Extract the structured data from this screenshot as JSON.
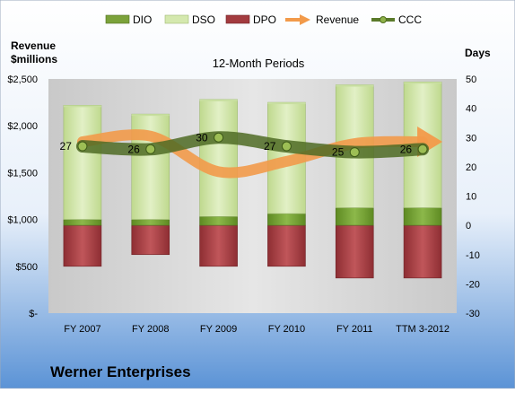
{
  "chart_data": {
    "type": "bar",
    "title": "12-Month Periods",
    "company": "Werner Enterprises",
    "left_axis_title_line1": "Revenue",
    "left_axis_title_line2": "$millions",
    "right_axis_title": "Days",
    "categories": [
      "FY 2007",
      "FY 2008",
      "FY 2009",
      "FY 2010",
      "FY 2011",
      "TTM 3-2012"
    ],
    "left_axis": {
      "min": 0,
      "max": 2500,
      "ticks": [
        0,
        500,
        1000,
        1500,
        2000,
        2500
      ],
      "tick_labels": [
        "$-",
        "$500",
        "$1,000",
        "$1,500",
        "$2,000",
        "$2,500"
      ]
    },
    "right_axis": {
      "min": -30,
      "max": 50,
      "ticks": [
        -30,
        -20,
        -10,
        0,
        10,
        20,
        30,
        40,
        50
      ],
      "tick_labels": [
        "-30",
        "-20",
        "-10",
        "0",
        "10",
        "20",
        "30",
        "40",
        "50"
      ]
    },
    "legend_position": "top",
    "series": [
      {
        "name": "DIO",
        "axis": "right",
        "kind": "stacked-bar-positive",
        "color": "#6E9B2A",
        "values": [
          2,
          2,
          3,
          4,
          6,
          6
        ]
      },
      {
        "name": "DSO",
        "axis": "right",
        "kind": "stacked-bar-positive",
        "color": "#D4E8AE",
        "values": [
          39,
          36,
          40,
          38,
          42,
          43
        ]
      },
      {
        "name": "DPO",
        "axis": "right",
        "kind": "bar-negative",
        "color": "#A33B3F",
        "values": [
          -14,
          -10,
          -14,
          -14,
          -18,
          -18
        ]
      },
      {
        "name": "Revenue",
        "axis": "left",
        "kind": "smooth-arrow-line",
        "color": "#F29A4A",
        "values": [
          1830,
          1890,
          1510,
          1620,
          1810,
          1830
        ]
      },
      {
        "name": "CCC",
        "axis": "right",
        "kind": "smooth-line-markers",
        "color": "#5A7A2A",
        "values": [
          27,
          26,
          30,
          27,
          25,
          26
        ]
      }
    ],
    "data_labels": [
      "27",
      "26",
      "30",
      "27",
      "25",
      "26"
    ],
    "grid": false
  }
}
